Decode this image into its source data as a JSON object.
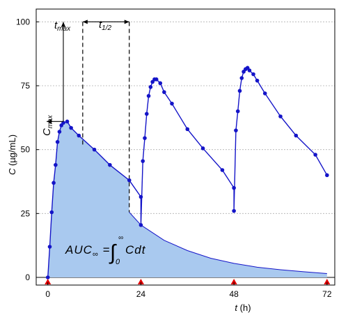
{
  "chart_data": {
    "type": "line",
    "title": "",
    "xlabel": {
      "var": "t",
      "unit": "(h)"
    },
    "ylabel": {
      "var": "C",
      "unit": "(µg/mL)"
    },
    "xlim": [
      -3,
      74
    ],
    "ylim": [
      -3,
      105
    ],
    "xticks": [
      0,
      24,
      48,
      72
    ],
    "yticks": [
      0,
      25,
      50,
      75,
      100
    ],
    "grid": "horizontal-dotted",
    "colors": {
      "line": "#1414c8",
      "marker": "#1414c8",
      "fill": "#a9c9ef",
      "dose_marker": "#e00000"
    },
    "dose_times": [
      0,
      24,
      48,
      72
    ],
    "series": [
      {
        "x": [
          0,
          0.5,
          1,
          1.5,
          2,
          2.5,
          3,
          3.5,
          4,
          5,
          6,
          8,
          12,
          16,
          21,
          24,
          24,
          24.5,
          25,
          25.5,
          26,
          26.5,
          27,
          27.5,
          28,
          29,
          30,
          32,
          36,
          40,
          45,
          48,
          48,
          48.5,
          49,
          49.5,
          50,
          50.5,
          51,
          51.5,
          52,
          53,
          54,
          56,
          60,
          64,
          69,
          72
        ],
        "y": [
          0,
          12,
          25.5,
          37,
          44,
          53,
          57,
          59.5,
          60.5,
          61,
          58.5,
          55.5,
          50,
          44,
          38,
          31.5,
          20.5,
          45.5,
          54.5,
          64,
          71,
          74.5,
          76.5,
          77.5,
          77.5,
          76,
          72.5,
          68,
          58,
          50.5,
          42,
          35,
          26,
          57.5,
          65,
          73,
          78,
          80.5,
          81.5,
          82,
          81,
          79.5,
          77,
          72,
          63,
          55.5,
          48,
          40
        ]
      }
    ],
    "elimination_curve": {
      "x": [
        21,
        24,
        30,
        36,
        42,
        48,
        54,
        60,
        66,
        72
      ],
      "y": [
        25.5,
        20.5,
        14.5,
        10.5,
        7.5,
        5.5,
        4,
        3,
        2.2,
        1.5
      ]
    },
    "annotations": {
      "tmax": {
        "main": "t",
        "sub": "max",
        "x": 4,
        "y_top": 100
      },
      "cmax": {
        "main": "C",
        "sub": "max",
        "value": 61
      },
      "thalf": {
        "main": "t",
        "sub": "1/2",
        "from": 9,
        "to": 21,
        "y": 100
      },
      "auc": {
        "left": "AUC",
        "sub": "∞",
        "eq": " = ",
        "upper": "∞",
        "lower": "0",
        "integrand": "Cdt"
      }
    }
  }
}
